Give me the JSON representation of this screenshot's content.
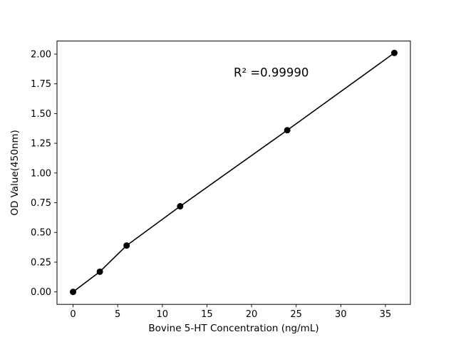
{
  "chart_data": {
    "type": "scatter",
    "title": "",
    "xlabel": "Bovine 5-HT Concentration (ng/mL)",
    "ylabel": "OD Value(450nm)",
    "x": [
      0,
      3,
      6,
      12,
      24,
      36
    ],
    "y": [
      0.0,
      0.17,
      0.39,
      0.72,
      1.36,
      2.01
    ],
    "line_through_points": true,
    "xlim": [
      -1.8,
      37.8
    ],
    "ylim": [
      -0.105,
      2.11
    ],
    "xticks": [
      0,
      5,
      10,
      15,
      20,
      25,
      30,
      35
    ],
    "yticks": [
      0.0,
      0.25,
      0.5,
      0.75,
      1.0,
      1.25,
      1.5,
      1.75,
      2.0
    ],
    "grid": false,
    "legend": "none",
    "annotation": {
      "text": "R² =0.99990",
      "x": 18,
      "y": 1.81
    },
    "marker_color": "#000000",
    "line_color": "#000000",
    "background_color": "#ffffff"
  }
}
